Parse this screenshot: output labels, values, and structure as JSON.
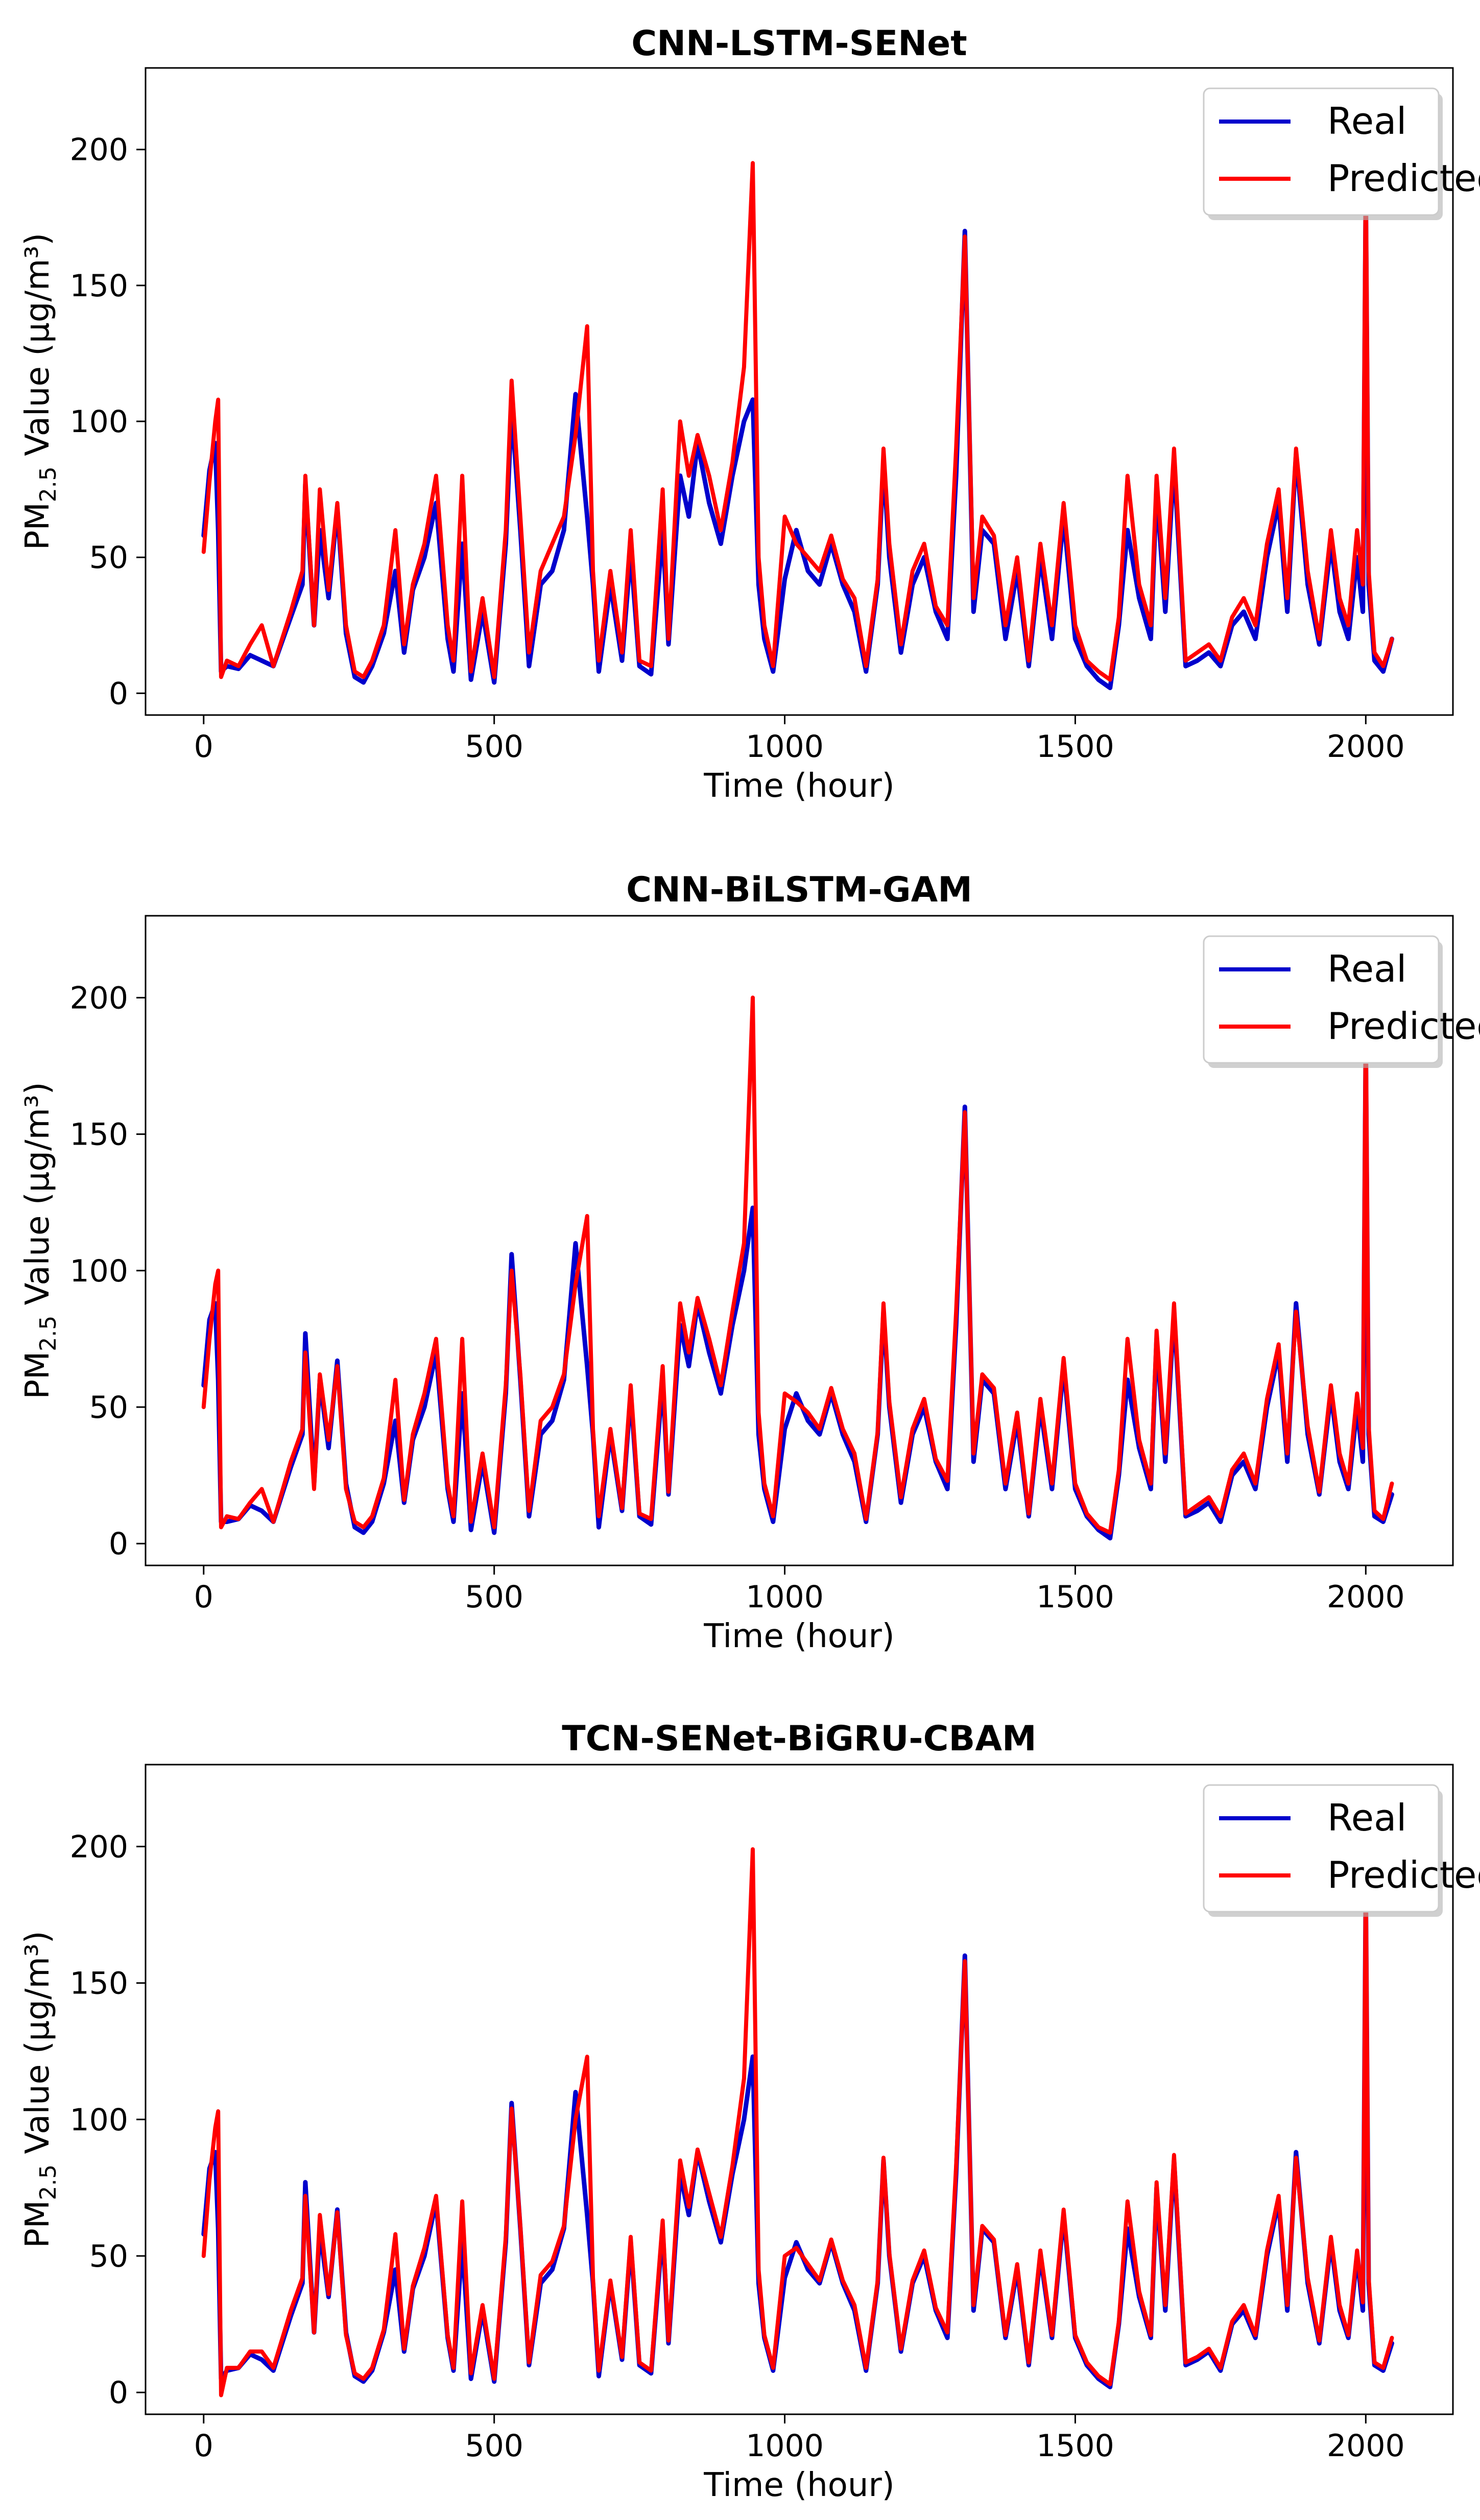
{
  "figure": {
    "background": "#ffffff"
  },
  "series_colors": {
    "Real": "#0000cc",
    "Predicted": "#ff0000"
  },
  "chart_data": [
    {
      "type": "line",
      "title": "CNN-LSTM-SENet",
      "xlabel": "Time (hour)",
      "ylabel": {
        "prefix": "PM",
        "subscript": "2.5",
        "suffix": " Value (µg/m³)"
      },
      "xlim": [
        -100,
        2150
      ],
      "ylim": [
        -8,
        230
      ],
      "xticks": [
        0,
        500,
        1000,
        1500,
        2000
      ],
      "yticks": [
        0,
        50,
        100,
        150,
        200
      ],
      "legend": {
        "position": "top-right",
        "entries": [
          "Real",
          "Predicted"
        ]
      },
      "x": [
        0,
        10,
        20,
        25,
        30,
        40,
        60,
        80,
        100,
        120,
        150,
        170,
        175,
        190,
        200,
        215,
        230,
        245,
        260,
        275,
        290,
        310,
        330,
        345,
        360,
        380,
        400,
        420,
        430,
        445,
        460,
        480,
        500,
        520,
        530,
        545,
        560,
        580,
        600,
        620,
        640,
        660,
        670,
        680,
        700,
        720,
        735,
        750,
        770,
        790,
        800,
        820,
        835,
        850,
        870,
        890,
        910,
        930,
        945,
        955,
        965,
        980,
        1000,
        1020,
        1040,
        1060,
        1080,
        1100,
        1120,
        1140,
        1160,
        1170,
        1180,
        1200,
        1220,
        1240,
        1260,
        1280,
        1295,
        1310,
        1325,
        1340,
        1360,
        1380,
        1400,
        1420,
        1440,
        1460,
        1480,
        1500,
        1520,
        1540,
        1560,
        1575,
        1590,
        1610,
        1630,
        1640,
        1655,
        1670,
        1690,
        1710,
        1730,
        1750,
        1770,
        1790,
        1810,
        1830,
        1850,
        1865,
        1880,
        1900,
        1920,
        1940,
        1955,
        1970,
        1985,
        1995,
        2000,
        2005,
        2015,
        2030,
        2045
      ],
      "series": [
        {
          "name": "Real",
          "values": [
            58,
            82,
            92,
            60,
            8,
            10,
            9,
            14,
            12,
            10,
            28,
            40,
            77,
            25,
            60,
            35,
            68,
            22,
            6,
            4,
            10,
            22,
            45,
            15,
            38,
            50,
            70,
            20,
            8,
            55,
            5,
            30,
            4,
            55,
            105,
            60,
            10,
            40,
            45,
            60,
            110,
            65,
            40,
            8,
            40,
            12,
            52,
            10,
            7,
            60,
            18,
            80,
            65,
            92,
            70,
            55,
            80,
            100,
            108,
            40,
            20,
            8,
            42,
            60,
            45,
            40,
            55,
            40,
            30,
            8,
            40,
            85,
            50,
            15,
            40,
            50,
            30,
            20,
            80,
            170,
            30,
            60,
            55,
            20,
            45,
            10,
            50,
            20,
            65,
            20,
            10,
            5,
            2,
            25,
            60,
            35,
            20,
            75,
            30,
            85,
            10,
            12,
            15,
            10,
            25,
            30,
            20,
            50,
            70,
            30,
            88,
            40,
            18,
            55,
            30,
            20,
            50,
            30,
            185,
            40,
            12,
            8,
            20
          ]
        },
        {
          "name": "Predicted",
          "values": [
            52,
            78,
            100,
            108,
            6,
            12,
            10,
            18,
            25,
            10,
            30,
            45,
            80,
            25,
            75,
            38,
            70,
            25,
            8,
            6,
            12,
            25,
            60,
            18,
            40,
            55,
            80,
            25,
            12,
            80,
            8,
            35,
            6,
            60,
            115,
            65,
            15,
            45,
            55,
            65,
            95,
            135,
            45,
            12,
            45,
            15,
            60,
            12,
            10,
            75,
            20,
            100,
            80,
            95,
            80,
            60,
            85,
            120,
            195,
            50,
            25,
            10,
            65,
            55,
            50,
            45,
            58,
            42,
            35,
            10,
            42,
            90,
            55,
            18,
            45,
            55,
            32,
            25,
            90,
            168,
            35,
            65,
            58,
            25,
            50,
            12,
            55,
            25,
            70,
            25,
            12,
            8,
            5,
            28,
            80,
            40,
            25,
            80,
            35,
            90,
            12,
            15,
            18,
            12,
            28,
            35,
            25,
            55,
            75,
            35,
            90,
            45,
            20,
            60,
            35,
            25,
            60,
            40,
            195,
            45,
            15,
            10,
            20
          ]
        }
      ]
    },
    {
      "type": "line",
      "title": "CNN-BiLSTM-GAM",
      "xlabel": "Time (hour)",
      "ylabel": {
        "prefix": "PM",
        "subscript": "2.5",
        "suffix": " Value (µg/m³)"
      },
      "xlim": [
        -100,
        2150
      ],
      "ylim": [
        -8,
        230
      ],
      "xticks": [
        0,
        500,
        1000,
        1500,
        2000
      ],
      "yticks": [
        0,
        50,
        100,
        150,
        200
      ],
      "legend": {
        "position": "top-right",
        "entries": [
          "Real",
          "Predicted"
        ]
      },
      "x": [
        0,
        10,
        20,
        25,
        30,
        40,
        60,
        80,
        100,
        120,
        150,
        170,
        175,
        190,
        200,
        215,
        230,
        245,
        260,
        275,
        290,
        310,
        330,
        345,
        360,
        380,
        400,
        420,
        430,
        445,
        460,
        480,
        500,
        520,
        530,
        545,
        560,
        580,
        600,
        620,
        640,
        660,
        670,
        680,
        700,
        720,
        735,
        750,
        770,
        790,
        800,
        820,
        835,
        850,
        870,
        890,
        910,
        930,
        945,
        955,
        965,
        980,
        1000,
        1020,
        1040,
        1060,
        1080,
        1100,
        1120,
        1140,
        1160,
        1170,
        1180,
        1200,
        1220,
        1240,
        1260,
        1280,
        1295,
        1310,
        1325,
        1340,
        1360,
        1380,
        1400,
        1420,
        1440,
        1460,
        1480,
        1500,
        1520,
        1540,
        1560,
        1575,
        1590,
        1610,
        1630,
        1640,
        1655,
        1670,
        1690,
        1710,
        1730,
        1750,
        1770,
        1790,
        1810,
        1830,
        1850,
        1865,
        1880,
        1900,
        1920,
        1940,
        1955,
        1970,
        1985,
        1995,
        2000,
        2005,
        2015,
        2030,
        2045
      ],
      "series": [
        {
          "name": "Real",
          "values": [
            58,
            82,
            88,
            60,
            8,
            8,
            9,
            14,
            12,
            8,
            28,
            40,
            77,
            22,
            60,
            35,
            67,
            22,
            6,
            4,
            8,
            22,
            45,
            15,
            38,
            50,
            70,
            20,
            8,
            55,
            5,
            30,
            4,
            55,
            106,
            60,
            10,
            40,
            45,
            60,
            110,
            65,
            40,
            6,
            40,
            12,
            55,
            10,
            7,
            60,
            18,
            80,
            65,
            88,
            70,
            55,
            80,
            100,
            123,
            40,
            20,
            8,
            42,
            55,
            45,
            40,
            55,
            40,
            30,
            8,
            40,
            85,
            50,
            15,
            40,
            50,
            30,
            20,
            80,
            160,
            30,
            60,
            55,
            20,
            45,
            10,
            50,
            20,
            65,
            20,
            10,
            5,
            2,
            25,
            60,
            35,
            20,
            75,
            30,
            85,
            10,
            12,
            15,
            8,
            25,
            30,
            20,
            50,
            70,
            30,
            88,
            40,
            18,
            55,
            30,
            20,
            50,
            30,
            185,
            40,
            10,
            8,
            18
          ]
        },
        {
          "name": "Predicted",
          "values": [
            50,
            75,
            95,
            100,
            6,
            10,
            9,
            15,
            20,
            8,
            30,
            42,
            70,
            20,
            62,
            38,
            65,
            20,
            8,
            6,
            10,
            24,
            60,
            16,
            40,
            55,
            75,
            22,
            10,
            75,
            8,
            33,
            6,
            58,
            100,
            62,
            12,
            45,
            50,
            62,
            95,
            120,
            42,
            10,
            42,
            13,
            58,
            11,
            9,
            65,
            19,
            88,
            70,
            90,
            75,
            58,
            85,
            110,
            200,
            48,
            22,
            10,
            55,
            52,
            48,
            42,
            57,
            42,
            33,
            9,
            41,
            88,
            52,
            17,
            42,
            53,
            31,
            23,
            85,
            158,
            33,
            62,
            57,
            22,
            48,
            11,
            53,
            22,
            68,
            22,
            11,
            6,
            4,
            27,
            75,
            38,
            22,
            78,
            33,
            88,
            11,
            14,
            17,
            10,
            27,
            33,
            22,
            53,
            73,
            33,
            85,
            43,
            19,
            58,
            33,
            22,
            55,
            35,
            195,
            43,
            12,
            9,
            22
          ]
        }
      ]
    },
    {
      "type": "line",
      "title": "TCN-SENet-BiGRU-CBAM",
      "xlabel": "Time (hour)",
      "ylabel": {
        "prefix": "PM",
        "subscript": "2.5",
        "suffix": " Value (µg/m³)"
      },
      "xlim": [
        -100,
        2150
      ],
      "ylim": [
        -8,
        230
      ],
      "xticks": [
        0,
        500,
        1000,
        1500,
        2000
      ],
      "yticks": [
        0,
        50,
        100,
        150,
        200
      ],
      "legend": {
        "position": "top-right",
        "entries": [
          "Real",
          "Predicted"
        ]
      },
      "x": [
        0,
        10,
        20,
        25,
        30,
        40,
        60,
        80,
        100,
        120,
        150,
        170,
        175,
        190,
        200,
        215,
        230,
        245,
        260,
        275,
        290,
        310,
        330,
        345,
        360,
        380,
        400,
        420,
        430,
        445,
        460,
        480,
        500,
        520,
        530,
        545,
        560,
        580,
        600,
        620,
        640,
        660,
        670,
        680,
        700,
        720,
        735,
        750,
        770,
        790,
        800,
        820,
        835,
        850,
        870,
        890,
        910,
        930,
        945,
        955,
        965,
        980,
        1000,
        1020,
        1040,
        1060,
        1080,
        1100,
        1120,
        1140,
        1160,
        1170,
        1180,
        1200,
        1220,
        1240,
        1260,
        1280,
        1295,
        1310,
        1325,
        1340,
        1360,
        1380,
        1400,
        1420,
        1440,
        1460,
        1480,
        1500,
        1520,
        1540,
        1560,
        1575,
        1590,
        1610,
        1630,
        1640,
        1655,
        1670,
        1690,
        1710,
        1730,
        1750,
        1770,
        1790,
        1810,
        1830,
        1850,
        1865,
        1880,
        1900,
        1920,
        1940,
        1955,
        1970,
        1985,
        1995,
        2000,
        2005,
        2015,
        2030,
        2045
      ],
      "series": [
        {
          "name": "Real",
          "values": [
            58,
            82,
            88,
            60,
            5,
            8,
            9,
            14,
            12,
            8,
            28,
            40,
            77,
            22,
            60,
            35,
            67,
            22,
            6,
            4,
            8,
            22,
            45,
            15,
            38,
            50,
            70,
            20,
            8,
            55,
            5,
            30,
            4,
            55,
            106,
            60,
            10,
            40,
            45,
            60,
            110,
            65,
            40,
            6,
            40,
            12,
            55,
            10,
            7,
            60,
            18,
            80,
            65,
            88,
            70,
            55,
            80,
            100,
            123,
            40,
            20,
            8,
            42,
            55,
            45,
            40,
            55,
            40,
            30,
            8,
            40,
            85,
            50,
            15,
            40,
            50,
            30,
            20,
            80,
            160,
            30,
            60,
            55,
            20,
            45,
            10,
            50,
            20,
            65,
            20,
            10,
            5,
            2,
            25,
            60,
            35,
            20,
            75,
            30,
            85,
            10,
            12,
            15,
            8,
            25,
            30,
            20,
            50,
            70,
            30,
            88,
            40,
            18,
            55,
            30,
            20,
            50,
            30,
            185,
            40,
            10,
            8,
            18
          ]
        },
        {
          "name": "Predicted",
          "values": [
            50,
            78,
            97,
            103,
            -1,
            9,
            9,
            15,
            15,
            9,
            30,
            42,
            72,
            22,
            65,
            36,
            66,
            21,
            7,
            5,
            9,
            23,
            58,
            16,
            39,
            53,
            72,
            21,
            9,
            70,
            7,
            32,
            5,
            57,
            104,
            61,
            11,
            43,
            48,
            61,
            100,
            123,
            42,
            8,
            41,
            13,
            57,
            11,
            8,
            63,
            19,
            85,
            68,
            89,
            73,
            57,
            83,
            115,
            199,
            45,
            21,
            9,
            50,
            53,
            47,
            41,
            56,
            41,
            32,
            9,
            41,
            86,
            51,
            16,
            41,
            52,
            31,
            22,
            83,
            158,
            32,
            61,
            56,
            21,
            47,
            11,
            52,
            21,
            67,
            21,
            11,
            6,
            3,
            26,
            70,
            37,
            21,
            77,
            32,
            87,
            11,
            13,
            16,
            9,
            26,
            32,
            21,
            52,
            72,
            32,
            86,
            42,
            19,
            57,
            32,
            21,
            52,
            33,
            192,
            42,
            11,
            9,
            20
          ]
        }
      ]
    }
  ]
}
